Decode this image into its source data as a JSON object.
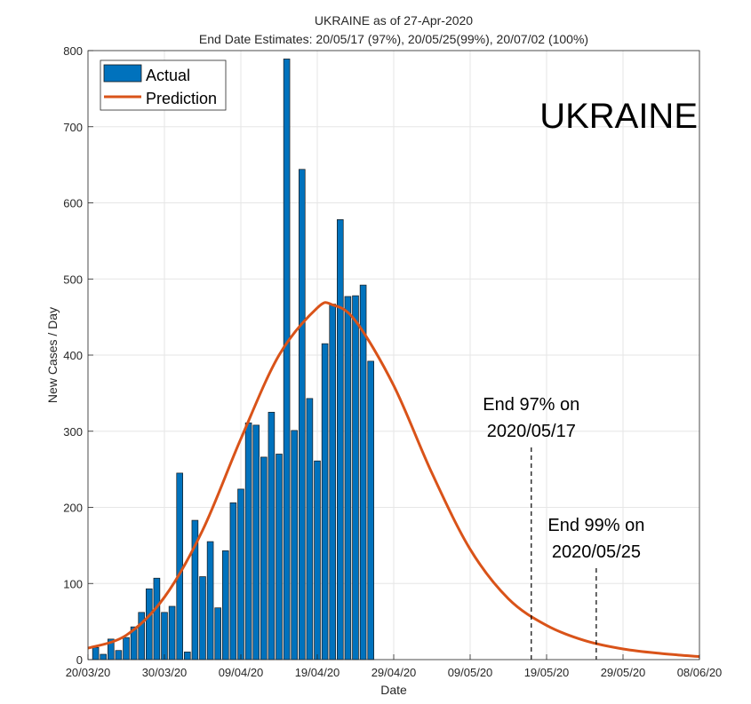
{
  "chart_data": {
    "type": "bar",
    "title": "UKRAINE as of 27-Apr-2020",
    "subtitle": "End Date Estimates: 20/05/17 (97%), 20/05/25(99%), 20/07/02 (100%)",
    "xlabel": "Date",
    "ylabel": "New Cases / Day",
    "watermark": "UKRAINE",
    "ylim": [
      0,
      800
    ],
    "xlim_days": [
      0,
      80
    ],
    "yticks": [
      0,
      100,
      200,
      300,
      400,
      500,
      600,
      700,
      800
    ],
    "xticks": [
      {
        "day": 0,
        "label": "20/03/20"
      },
      {
        "day": 10,
        "label": "30/03/20"
      },
      {
        "day": 20,
        "label": "09/04/20"
      },
      {
        "day": 30,
        "label": "19/04/20"
      },
      {
        "day": 40,
        "label": "29/04/20"
      },
      {
        "day": 50,
        "label": "09/05/20"
      },
      {
        "day": 60,
        "label": "19/05/20"
      },
      {
        "day": 70,
        "label": "29/05/20"
      },
      {
        "day": 80,
        "label": "08/06/20"
      }
    ],
    "grid": true,
    "legend": {
      "position": "top-left",
      "entries": [
        "Actual",
        "Prediction"
      ]
    },
    "series": [
      {
        "name": "Actual",
        "type": "bar",
        "start_day": 1,
        "values": [
          16,
          7,
          27,
          12,
          29,
          43,
          62,
          93,
          107,
          62,
          70,
          245,
          10,
          183,
          109,
          155,
          68,
          143,
          206,
          224,
          311,
          308,
          266,
          325,
          270,
          789,
          301,
          644,
          343,
          261,
          415,
          467,
          578,
          477,
          478,
          492,
          392
        ]
      },
      {
        "name": "Prediction",
        "type": "line",
        "model": "gaussian-like curve",
        "peak_day": 31.5,
        "peak_value": 467,
        "points": [
          [
            0,
            15
          ],
          [
            5,
            32
          ],
          [
            10,
            82
          ],
          [
            15,
            170
          ],
          [
            20,
            290
          ],
          [
            25,
            400
          ],
          [
            30,
            462
          ],
          [
            32,
            466
          ],
          [
            35,
            445
          ],
          [
            40,
            360
          ],
          [
            45,
            245
          ],
          [
            50,
            145
          ],
          [
            55,
            80
          ],
          [
            60,
            45
          ],
          [
            65,
            25
          ],
          [
            70,
            14
          ],
          [
            75,
            8
          ],
          [
            80,
            4
          ]
        ]
      }
    ],
    "annotations": [
      {
        "text_line1": "End 97% on",
        "text_line2": "2020/05/17",
        "day": 58
      },
      {
        "text_line1": "End 99% on",
        "text_line2": "2020/05/25",
        "day": 66.5
      }
    ],
    "colors": {
      "bar": "#0072BD",
      "line": "#D95319",
      "grid": "#e6e6e6"
    }
  }
}
